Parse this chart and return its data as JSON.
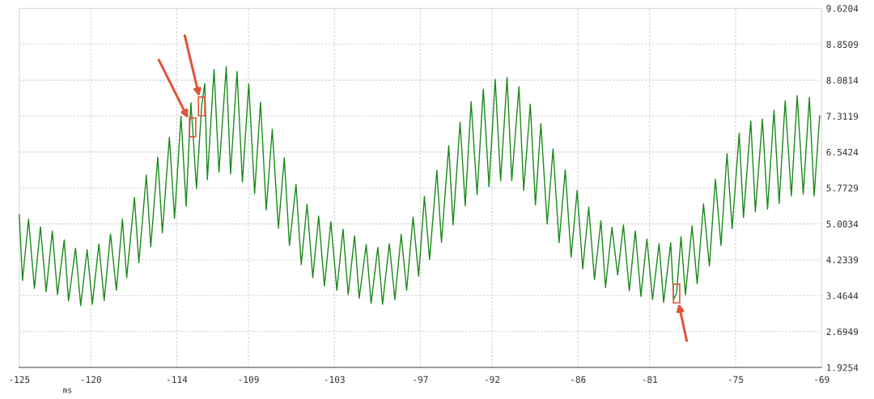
{
  "chart_data": {
    "type": "line",
    "xlabel": "ms",
    "x": [
      -125.0,
      -124.77,
      -124.35,
      -123.94,
      -123.52,
      -123.12,
      -122.69,
      -122.33,
      -121.86,
      -121.56,
      -121.07,
      -120.71,
      -120.26,
      -119.9,
      -119.44,
      -119.07,
      -118.63,
      -118.22,
      -117.8,
      -117.5,
      -116.96,
      -116.65,
      -116.13,
      -115.82,
      -115.33,
      -115.01,
      -114.52,
      -114.16,
      -113.71,
      -113.35,
      -113.02,
      -112.9,
      -112.63,
      -112.27,
      -112.05,
      -111.87,
      -111.4,
      -111.06,
      -110.55,
      -110.25,
      -109.8,
      -109.42,
      -108.98,
      -108.57,
      -108.16,
      -107.76,
      -107.34,
      -106.91,
      -106.5,
      -106.14,
      -105.68,
      -105.32,
      -104.91,
      -104.51,
      -104.1,
      -103.7,
      -103.25,
      -102.83,
      -102.4,
      -102.04,
      -101.59,
      -101.27,
      -100.78,
      -100.44,
      -99.97,
      -99.64,
      -99.17,
      -98.78,
      -98.34,
      -97.96,
      -97.51,
      -97.12,
      -96.72,
      -96.36,
      -95.85,
      -95.53,
      -95.02,
      -94.72,
      -94.23,
      -93.87,
      -93.46,
      -93.04,
      -92.61,
      -92.21,
      -91.78,
      -91.4,
      -90.95,
      -90.62,
      -90.12,
      -89.79,
      -89.33,
      -88.97,
      -88.59,
      -88.15,
      -87.74,
      -87.32,
      -86.89,
      -86.48,
      -86.06,
      -85.67,
      -85.25,
      -84.85,
      -84.4,
      -84.08,
      -83.63,
      -83.23,
      -82.83,
      -82.42,
      -82.0,
      -81.61,
      -81.19,
      -80.8,
      -80.34,
      -80.02,
      -79.53,
      -79.32,
      -79.12,
      -78.81,
      -78.5,
      -78.04,
      -77.68,
      -77.24,
      -76.83,
      -76.41,
      -76.02,
      -75.6,
      -75.24,
      -74.75,
      -74.45,
      -73.94,
      -73.62,
      -73.13,
      -72.77,
      -72.32,
      -71.96,
      -71.54,
      -71.11,
      -70.7,
      -70.28,
      -69.85,
      -69.52,
      -69.13
    ],
    "series": [
      {
        "color": "#1a8a1a",
        "values": [
          5.2,
          3.79,
          5.1,
          3.62,
          4.94,
          3.55,
          4.85,
          3.49,
          4.66,
          3.35,
          4.48,
          3.25,
          4.45,
          3.28,
          4.57,
          3.36,
          4.79,
          3.58,
          5.1,
          3.85,
          5.57,
          4.17,
          6.05,
          4.51,
          6.43,
          4.81,
          6.86,
          5.12,
          7.31,
          5.38,
          7.6,
          7.07,
          5.76,
          7.52,
          8.01,
          5.95,
          8.31,
          6.11,
          8.37,
          6.07,
          8.27,
          5.9,
          8.0,
          5.65,
          7.61,
          5.3,
          7.03,
          4.91,
          6.42,
          4.54,
          5.85,
          4.13,
          5.42,
          3.85,
          5.17,
          3.67,
          5.05,
          3.58,
          4.89,
          3.49,
          4.75,
          3.41,
          4.56,
          3.3,
          4.5,
          3.28,
          4.58,
          3.38,
          4.78,
          3.58,
          5.15,
          3.88,
          5.59,
          4.24,
          6.15,
          4.61,
          6.68,
          4.98,
          7.18,
          5.39,
          7.62,
          5.63,
          7.89,
          5.8,
          8.1,
          5.93,
          8.14,
          5.93,
          7.94,
          5.72,
          7.57,
          5.41,
          7.15,
          5.0,
          6.61,
          4.6,
          6.16,
          4.29,
          5.72,
          4.04,
          5.36,
          3.81,
          5.07,
          3.64,
          4.93,
          3.91,
          4.98,
          3.57,
          4.85,
          3.45,
          4.68,
          3.38,
          4.58,
          3.32,
          4.6,
          3.39,
          3.51,
          4.73,
          3.48,
          4.96,
          3.72,
          5.43,
          4.1,
          5.96,
          4.54,
          6.51,
          4.9,
          6.95,
          5.14,
          7.21,
          5.26,
          7.25,
          5.32,
          7.44,
          5.44,
          7.64,
          5.6,
          7.75,
          5.64,
          7.71,
          5.6,
          7.32
        ]
      }
    ],
    "xlim": [
      -125,
      -69
    ],
    "xticks": [
      -125,
      -120,
      -114,
      -109,
      -103,
      -97,
      -92,
      -86,
      -81,
      -75,
      -69
    ],
    "ylim": [
      1.9254,
      9.6204
    ],
    "yticks": [
      1.9254,
      2.6949,
      3.4644,
      4.2339,
      5.0034,
      5.7729,
      6.5424,
      7.3119,
      8.0814,
      8.8509,
      9.6204
    ],
    "grid": true,
    "marker": "none",
    "line_style": "solid"
  }
}
